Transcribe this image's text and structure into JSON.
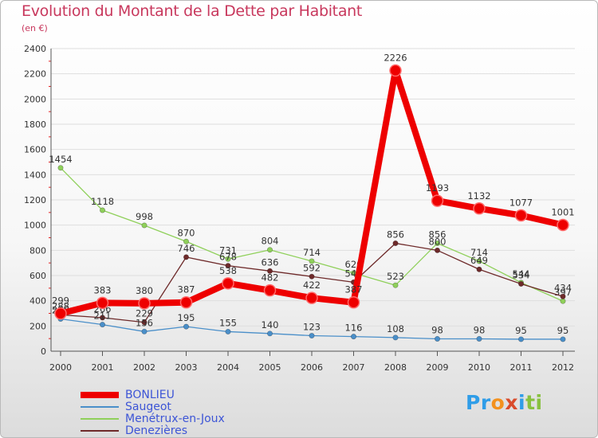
{
  "title": "Evolution du Montant de la Dette par Habitant",
  "subtitle": "(en €)",
  "brand": {
    "letters": [
      "P",
      "r",
      "o",
      "x",
      "i",
      "t",
      "i"
    ],
    "colors": [
      "#2f9de8",
      "#2f9de8",
      "#f3911e",
      "#d94b2b",
      "#2f9de8",
      "#88c13f",
      "#88c13f"
    ]
  },
  "chart_data": {
    "type": "line",
    "x": [
      "2000",
      "2001",
      "2002",
      "2003",
      "2004",
      "2005",
      "2006",
      "2007",
      "2008",
      "2009",
      "2010",
      "2011",
      "2012"
    ],
    "ylim": [
      0,
      2400
    ],
    "yticks": [
      "0",
      "200",
      "400",
      "600",
      "800",
      "1000",
      "1200",
      "1400",
      "1600",
      "1800",
      "2000",
      "2200",
      "2400"
    ],
    "grid": "horizontal",
    "legend": "bottom-left",
    "series": [
      {
        "name": "Menétrux-en-Joux",
        "color": "#8fd05a",
        "values": [
          1454,
          1118,
          998,
          870,
          731,
          804,
          714,
          620,
          523,
          856,
          714,
          544,
          397
        ],
        "labels": [
          "1454",
          "1118",
          "998",
          "870",
          "731",
          "804",
          "714",
          "620",
          "523",
          "856",
          "714",
          "544",
          "397"
        ]
      },
      {
        "name": "Denezières",
        "color": "#6e2a2a",
        "values": [
          288,
          266,
          229,
          746,
          678,
          636,
          592,
          547,
          856,
          800,
          649,
          534,
          434
        ],
        "labels": [
          "288",
          "266",
          "229",
          "746",
          "678",
          "636",
          "592",
          "547",
          "856",
          "800",
          "649",
          "534",
          "434"
        ]
      },
      {
        "name": "Saugeot",
        "color": "#4a8fc9",
        "values": [
          256,
          211,
          156,
          195,
          155,
          140,
          123,
          116,
          108,
          98,
          98,
          95,
          95
        ],
        "labels": [
          "256",
          "211",
          "156",
          "195",
          "155",
          "140",
          "123",
          "116",
          "108",
          "98",
          "98",
          "95",
          "95"
        ]
      },
      {
        "name": "BONLIEU",
        "color": "#ee0000",
        "values": [
          299,
          383,
          380,
          387,
          538,
          482,
          422,
          387,
          2226,
          1193,
          1132,
          1077,
          1001
        ],
        "labels": [
          "299",
          "383",
          "380",
          "387",
          "538",
          "482",
          "422",
          "387",
          "2226",
          "1193",
          "1132",
          "1077",
          "1001"
        ]
      }
    ],
    "legend_order": [
      "BONLIEU",
      "Saugeot",
      "Menétrux-en-Joux",
      "Denezières"
    ]
  }
}
